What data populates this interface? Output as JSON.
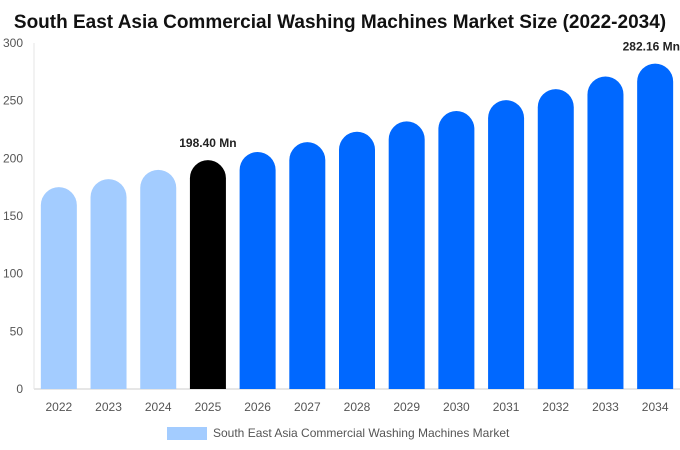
{
  "chart_data": {
    "type": "bar",
    "title": "South East Asia Commercial Washing Machines  Market Size (2022-2034)",
    "xlabel": "",
    "ylabel": "",
    "ylim": [
      0,
      300
    ],
    "yticks": [
      0,
      50,
      100,
      150,
      200,
      250,
      300
    ],
    "categories": [
      "2022",
      "2023",
      "2024",
      "2025",
      "2026",
      "2027",
      "2028",
      "2029",
      "2030",
      "2031",
      "2032",
      "2033",
      "2034"
    ],
    "series": [
      {
        "name": "South East Asia Commercial Washing Machines  Market",
        "values": [
          175.0,
          182.0,
          190.0,
          198.4,
          205.5,
          214.0,
          223.0,
          232.0,
          241.0,
          250.5,
          260.0,
          271.0,
          282.16
        ]
      }
    ],
    "bar_colors": [
      "#a3ccff",
      "#a3ccff",
      "#a3ccff",
      "#000000",
      "#0068ff",
      "#0068ff",
      "#0068ff",
      "#0068ff",
      "#0068ff",
      "#0068ff",
      "#0068ff",
      "#0068ff",
      "#0068ff"
    ],
    "data_labels": [
      {
        "category": "2025",
        "text": "198.40 Mn"
      },
      {
        "category": "2034",
        "text": "282.16 Mn"
      }
    ],
    "grid": false,
    "legend_position": "bottom",
    "legend_color": "#a3ccff"
  }
}
